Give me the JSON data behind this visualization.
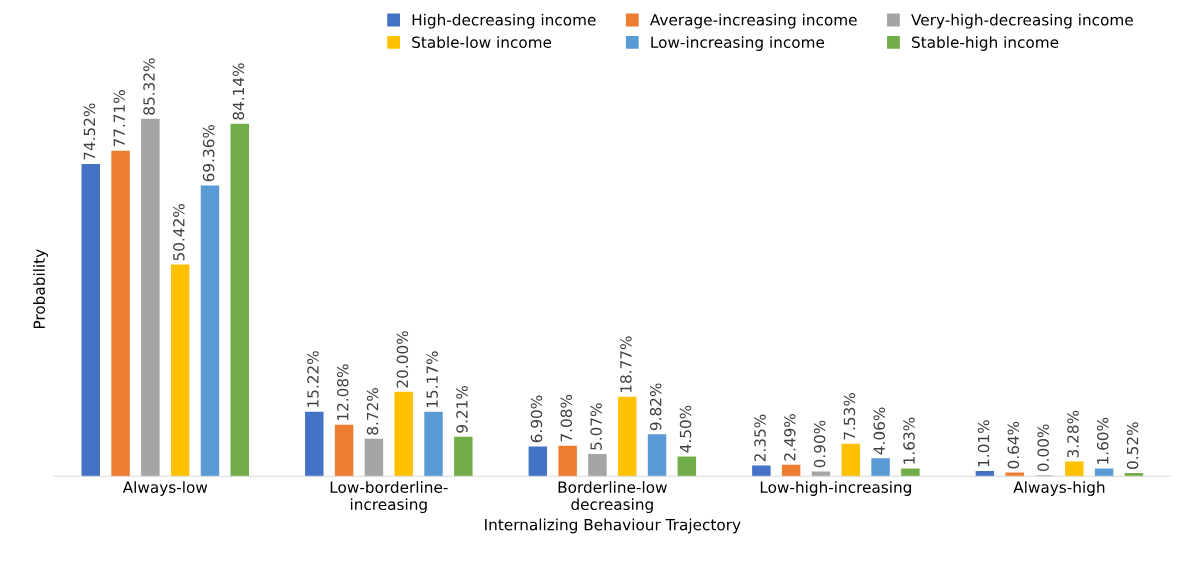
{
  "chart_data": {
    "type": "bar",
    "xlabel": "Internalizing Behaviour Trajectory",
    "ylabel": "Probability",
    "categories": [
      "Always-low",
      "Low-borderline-\nincreasing",
      "Borderline-low\ndecreasing",
      "Low-high-increasing",
      "Always-high"
    ],
    "series": [
      {
        "name": "High-decreasing income",
        "color": "#4472c4",
        "values": [
          74.52,
          15.22,
          6.9,
          2.35,
          1.01
        ],
        "value_labels": [
          "74.52%",
          "15.22%",
          "6.90%",
          "2.35%",
          "1.01%"
        ]
      },
      {
        "name": "Average-increasing income",
        "color": "#ed7d31",
        "values": [
          77.71,
          12.08,
          7.08,
          2.49,
          0.64
        ],
        "value_labels": [
          "77.71%",
          "12.08%",
          "7.08%",
          "2.49%",
          "0.64%"
        ]
      },
      {
        "name": "Very-high-decreasing income",
        "color": "#a5a5a5",
        "values": [
          85.32,
          8.72,
          5.07,
          0.9,
          0.0
        ],
        "value_labels": [
          "85.32%",
          "8.72%",
          "5.07%",
          "0.90%",
          "0.00%"
        ]
      },
      {
        "name": "Stable-low income",
        "color": "#ffc000",
        "values": [
          50.42,
          20.0,
          18.77,
          7.53,
          3.28
        ],
        "value_labels": [
          "50.42%",
          "20.00%",
          "18.77%",
          "7.53%",
          "3.28%"
        ]
      },
      {
        "name": "Low-increasing income",
        "color": "#5b9bd5",
        "values": [
          69.36,
          15.17,
          9.82,
          4.06,
          1.6
        ],
        "value_labels": [
          "69.36%",
          "15.17%",
          "9.82%",
          "4.06%",
          "1.60%"
        ]
      },
      {
        "name": "Stable-high income",
        "color": "#70ad47",
        "values": [
          84.14,
          9.21,
          4.5,
          1.63,
          0.52
        ],
        "value_labels": [
          "84.14%",
          "9.21%",
          "4.50%",
          "1.63%",
          "0.52%"
        ]
      }
    ],
    "legend": "top",
    "grid": false
  }
}
